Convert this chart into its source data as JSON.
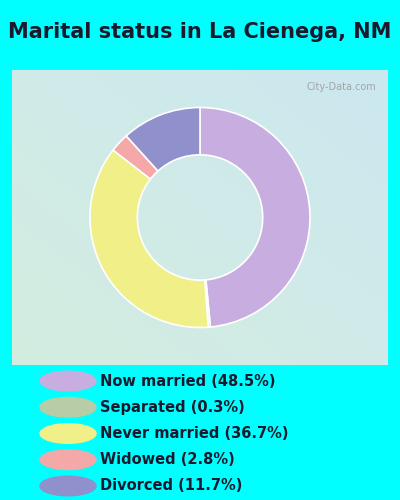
{
  "title": "Marital status in La Cienega, NM",
  "title_color": "#1a1a2e",
  "bg_color": "#00FFFF",
  "chart_bg_colors": [
    "#c8e6d0",
    "#d8eef0"
  ],
  "slices": [
    {
      "label": "Now married (48.5%)",
      "value": 48.5,
      "color": "#c8aee0"
    },
    {
      "label": "Separated (0.3%)",
      "value": 0.3,
      "color": "#b8cca8"
    },
    {
      "label": "Never married (36.7%)",
      "value": 36.7,
      "color": "#f0ef88"
    },
    {
      "label": "Widowed (2.8%)",
      "value": 2.8,
      "color": "#f4a8a8"
    },
    {
      "label": "Divorced (11.7%)",
      "value": 11.7,
      "color": "#9090cc"
    }
  ],
  "legend_text_color": "#1a1a2e",
  "legend_fontsize": 10.5,
  "title_fontsize": 15,
  "watermark": "City-Data.com"
}
